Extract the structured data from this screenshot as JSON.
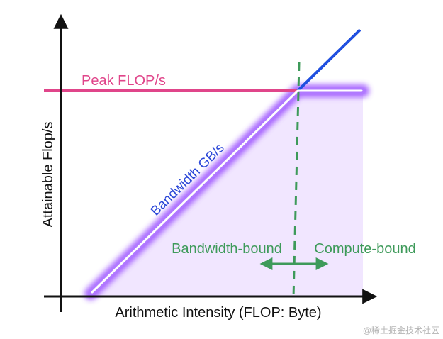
{
  "diagram": {
    "x_axis_label": "Arithmetic Intensity (FLOP: Byte)",
    "y_axis_label": "Attainable Flop/s",
    "peak_label": "Peak FLOP/s",
    "bandwidth_label": "Bandwidth GB/s",
    "bandwidth_bound_label": "Bandwidth-bound",
    "compute_bound_label": "Compute-bound",
    "watermark": "@稀土掘金技术社区",
    "colors": {
      "peak": "#e0458a",
      "bandwidth_text": "#2a46d8",
      "bandwidth_extension": "#1f4fe0",
      "divider": "#3e9a5a",
      "glow": "#9a4dff",
      "fill": "#f1e6ff",
      "axis": "#111111"
    }
  }
}
